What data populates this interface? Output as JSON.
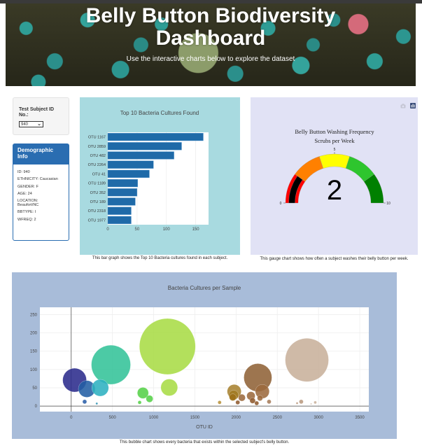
{
  "header": {
    "title": "Belly Button Biodiversity Dashboard",
    "title_line1": "Belly Button Biodiversity",
    "title_line2": "Dashboard",
    "subtitle": "Use the interactive charts below to explore the dataset"
  },
  "selector": {
    "label": "Test Subject ID No.:",
    "selected_value": "940"
  },
  "demographics": {
    "heading": "Demographic Info",
    "items": [
      "ID: 940",
      "ETHNICITY: Caucasian",
      "GENDER: F",
      "AGE: 24",
      "LOCATION: Beaufort/NC",
      "BBTYPE: I",
      "WFREQ: 2"
    ]
  },
  "captions": {
    "bar": "This bar graph shows the Top 10 Bacteria cultures found in each subject.",
    "gauge": "This gauge chart shows how often a subject washes their belly button per week.",
    "bubble": "This bubble chart shows every bacteria that exists within the selected subject's belly button."
  },
  "colors": {
    "bar_fill": "#1f6aa8",
    "bar_panel_bg": "#a8dae0",
    "gauge_panel_bg": "#e1e2f5",
    "bubble_panel_bg": "#a8bcd9",
    "demo_heading_bg": "#2a6db1"
  },
  "modebar": {
    "icons": [
      "camera-icon",
      "plotly-logo-icon"
    ]
  },
  "chart_data": [
    {
      "type": "bar",
      "orientation": "horizontal",
      "title": "Top 10 Bacteria Cultures Found",
      "categories": [
        "OTU 1167",
        "OTU 2859",
        "OTU 482",
        "OTU 2264",
        "OTU 41",
        "OTU 1189",
        "OTU 352",
        "OTU 189",
        "OTU 2318",
        "OTU 1977"
      ],
      "values": [
        163,
        126,
        113,
        78,
        71,
        51,
        50,
        47,
        40,
        40
      ],
      "xlabel": "",
      "ylabel": "",
      "xticks": [
        0,
        50,
        100,
        150
      ],
      "xlim": [
        0,
        172
      ],
      "grid": true
    },
    {
      "type": "gauge",
      "title": "Belly Button Washing Frequency",
      "subtitle": "Scrubs per Week",
      "value": 2,
      "range": [
        0,
        10
      ],
      "ticks": [
        0,
        5,
        10
      ],
      "steps": [
        {
          "range": [
            0,
            2
          ],
          "color": "#ff0000"
        },
        {
          "range": [
            2,
            4
          ],
          "color": "#ff8000"
        },
        {
          "range": [
            4,
            6
          ],
          "color": "#ffff00"
        },
        {
          "range": [
            6,
            8
          ],
          "color": "#2ec52e"
        },
        {
          "range": [
            8,
            10
          ],
          "color": "#008000"
        }
      ],
      "bar_color": "#000000"
    },
    {
      "type": "scatter",
      "mode": "markers",
      "title": "Bacteria Cultures per Sample",
      "xlabel": "OTU ID",
      "ylabel": "",
      "xticks": [
        0,
        500,
        1000,
        1500,
        2000,
        2500,
        3000,
        3500
      ],
      "yticks": [
        0,
        50,
        100,
        150,
        200,
        250
      ],
      "xlim": [
        -380,
        3610
      ],
      "ylim": [
        -15,
        270
      ],
      "grid": true,
      "points": [
        {
          "x": 41,
          "y": 71,
          "r": 17,
          "color": "#2b2b8c"
        },
        {
          "x": 189,
          "y": 47,
          "r": 12,
          "color": "#235ea4"
        },
        {
          "x": 352,
          "y": 50,
          "r": 12,
          "color": "#2db0c0"
        },
        {
          "x": 482,
          "y": 113,
          "r": 28,
          "color": "#33c399"
        },
        {
          "x": 163,
          "y": 12,
          "r": 3,
          "color": "#2a5ea8"
        },
        {
          "x": 310,
          "y": 7,
          "r": 1.5,
          "color": "#2a8fb0"
        },
        {
          "x": 870,
          "y": 36,
          "r": 8,
          "color": "#55d048"
        },
        {
          "x": 950,
          "y": 20,
          "r": 5,
          "color": "#55d048"
        },
        {
          "x": 830,
          "y": 10,
          "r": 2.5,
          "color": "#55d048"
        },
        {
          "x": 1167,
          "y": 163,
          "r": 40,
          "color": "#a9dc46"
        },
        {
          "x": 1189,
          "y": 51,
          "r": 12,
          "color": "#a9dc46"
        },
        {
          "x": 1800,
          "y": 10,
          "r": 2.5,
          "color": "#b8923a"
        },
        {
          "x": 1977,
          "y": 40,
          "r": 10,
          "color": "#a78230"
        },
        {
          "x": 1970,
          "y": 30,
          "r": 7,
          "color": "#a07a22"
        },
        {
          "x": 1960,
          "y": 24,
          "r": 5,
          "color": "#9c7018"
        },
        {
          "x": 2070,
          "y": 23,
          "r": 5,
          "color": "#9c6a3e"
        },
        {
          "x": 2020,
          "y": 10,
          "r": 3,
          "color": "#8f5a2e"
        },
        {
          "x": 2180,
          "y": 28,
          "r": 6,
          "color": "#9c6a3e"
        },
        {
          "x": 2264,
          "y": 78,
          "r": 20,
          "color": "#8f6237"
        },
        {
          "x": 2318,
          "y": 40,
          "r": 10,
          "color": "#9c6a3e"
        },
        {
          "x": 2200,
          "y": 15,
          "r": 4,
          "color": "#8f5a2e"
        },
        {
          "x": 2290,
          "y": 22,
          "r": 4,
          "color": "#9c6a3e"
        },
        {
          "x": 2250,
          "y": 8,
          "r": 3,
          "color": "#8f5a2e"
        },
        {
          "x": 2400,
          "y": 12,
          "r": 3,
          "color": "#a67c5a"
        },
        {
          "x": 2859,
          "y": 126,
          "r": 31,
          "color": "#c8b19b"
        },
        {
          "x": 2790,
          "y": 12,
          "r": 3,
          "color": "#b99a80"
        },
        {
          "x": 2740,
          "y": 8,
          "r": 1.5,
          "color": "#b99a80"
        },
        {
          "x": 2960,
          "y": 10,
          "r": 2,
          "color": "#c8b19b"
        },
        {
          "x": 2910,
          "y": 6,
          "r": 1,
          "color": "#c8b19b"
        }
      ]
    }
  ]
}
